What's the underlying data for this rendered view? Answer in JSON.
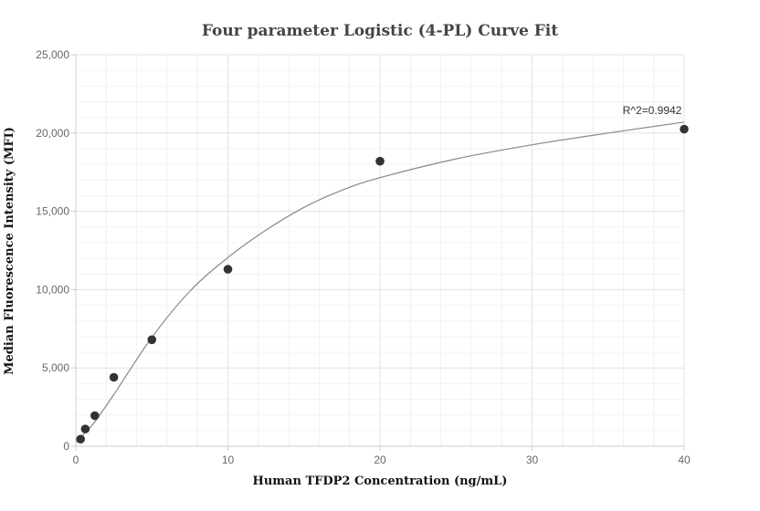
{
  "chart_data": {
    "type": "scatter",
    "title": "Four parameter Logistic (4-PL) Curve Fit",
    "xlabel": "Human TFDP2 Concentration (ng/mL)",
    "ylabel": "Median Fluorescence Intensity (MFI)",
    "xlim": [
      0,
      40
    ],
    "ylim": [
      0,
      25000
    ],
    "x_ticks": [
      "0",
      "10",
      "20",
      "30",
      "40"
    ],
    "y_ticks": [
      "0",
      "5,000",
      "10,000",
      "15,000",
      "20,000",
      "25,000"
    ],
    "grid": true,
    "series": [
      {
        "type": "scatter",
        "x": [
          0.3125,
          0.625,
          1.25,
          2.5,
          5,
          10,
          20,
          40
        ],
        "y": [
          450,
          1100,
          1950,
          4400,
          6800,
          11300,
          18200,
          20250
        ]
      },
      {
        "type": "line",
        "x": [
          0,
          0.3125,
          0.625,
          1.25,
          2.5,
          5,
          7.5,
          10,
          12.5,
          15,
          17.5,
          20,
          25,
          30,
          35,
          40
        ],
        "y": [
          250,
          550,
          880,
          1560,
          3300,
          6950,
          9900,
          12050,
          13800,
          15250,
          16350,
          17150,
          18350,
          19250,
          20000,
          20700
        ]
      }
    ],
    "annotations": [
      {
        "text": "R^2=0.9942",
        "x": 40,
        "y": 20700
      }
    ],
    "colors": {
      "points": "#333333",
      "fit_line": "#888888",
      "grid": "#e6e6e6",
      "axis": "#cccccc"
    }
  }
}
